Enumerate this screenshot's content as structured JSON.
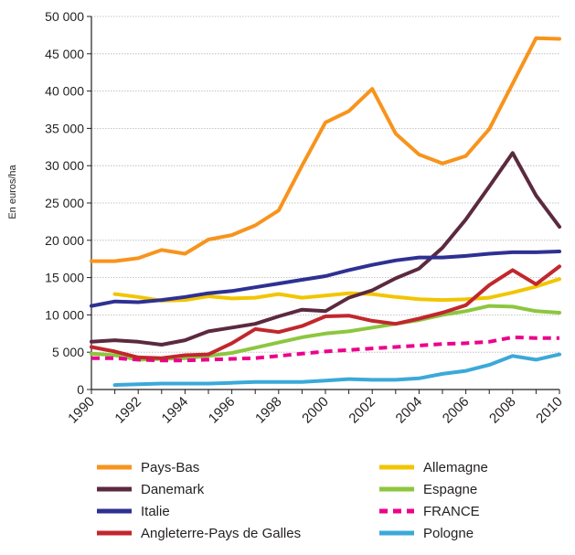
{
  "chart_data": {
    "type": "line",
    "title": "",
    "xlabel": "",
    "ylabel": "En euros/ha",
    "xlim": [
      1990,
      2010
    ],
    "ylim": [
      0,
      50000
    ],
    "grid": true,
    "legend_position": "bottom",
    "x_ticks": [
      {
        "value": 1990,
        "label": "1990"
      },
      {
        "value": 1992,
        "label": "1992"
      },
      {
        "value": 1994,
        "label": "1994"
      },
      {
        "value": 1996,
        "label": "1996"
      },
      {
        "value": 1998,
        "label": "1998"
      },
      {
        "value": 2000,
        "label": "2000"
      },
      {
        "value": 2002,
        "label": "2002"
      },
      {
        "value": 2004,
        "label": "2004"
      },
      {
        "value": 2006,
        "label": "2006"
      },
      {
        "value": 2008,
        "label": "2008"
      },
      {
        "value": 2010,
        "label": "2010"
      }
    ],
    "y_ticks": [
      {
        "value": 0,
        "label": "0"
      },
      {
        "value": 5000,
        "label": "5 000"
      },
      {
        "value": 10000,
        "label": "10 000"
      },
      {
        "value": 15000,
        "label": "15 000"
      },
      {
        "value": 20000,
        "label": "20 000"
      },
      {
        "value": 25000,
        "label": "25 000"
      },
      {
        "value": 30000,
        "label": "30 000"
      },
      {
        "value": 35000,
        "label": "35 000"
      },
      {
        "value": 40000,
        "label": "40 000"
      },
      {
        "value": 45000,
        "label": "45 000"
      },
      {
        "value": 50000,
        "label": "50 000"
      }
    ],
    "series": [
      {
        "name": "Pays-Bas",
        "color": "#f7941d",
        "dashed": false,
        "x": [
          1990,
          1991,
          1992,
          1993,
          1994,
          1995,
          1996,
          1997,
          1998,
          1999,
          2000,
          2001,
          2002,
          2003,
          2004,
          2005,
          2006,
          2007,
          2008,
          2009,
          2010
        ],
        "y": [
          17200,
          17200,
          17600,
          18700,
          18200,
          20100,
          20700,
          22000,
          24000,
          30000,
          35800,
          37300,
          40300,
          34300,
          31500,
          30300,
          31300,
          34900,
          41000,
          47100,
          47000
        ]
      },
      {
        "name": "Allemagne",
        "color": "#f2c500",
        "dashed": false,
        "x": [
          1991,
          1992,
          1993,
          1994,
          1995,
          1996,
          1997,
          1998,
          1999,
          2000,
          2001,
          2002,
          2003,
          2004,
          2005,
          2006,
          2007,
          2008,
          2009,
          2010
        ],
        "y": [
          12800,
          12400,
          11900,
          12000,
          12500,
          12200,
          12300,
          12800,
          12300,
          12600,
          12900,
          12800,
          12400,
          12100,
          12000,
          12100,
          12300,
          13000,
          13800,
          14800
        ]
      },
      {
        "name": "Danemark",
        "color": "#5b2a3f",
        "dashed": false,
        "x": [
          1990,
          1991,
          1992,
          1993,
          1994,
          1995,
          1996,
          1997,
          1998,
          1999,
          2000,
          2001,
          2002,
          2003,
          2004,
          2005,
          2006,
          2007,
          2008,
          2009,
          2010
        ],
        "y": [
          6400,
          6600,
          6400,
          6000,
          6600,
          7800,
          8300,
          8800,
          9800,
          10700,
          10500,
          12300,
          13300,
          14900,
          16200,
          19000,
          22800,
          27200,
          31700,
          26000,
          21800
        ]
      },
      {
        "name": "Espagne",
        "color": "#8dc63f",
        "dashed": false,
        "x": [
          1990,
          1991,
          1992,
          1993,
          1994,
          1995,
          1996,
          1997,
          1998,
          1999,
          2000,
          2001,
          2002,
          2003,
          2004,
          2005,
          2006,
          2007,
          2008,
          2009,
          2010
        ],
        "y": [
          4800,
          4600,
          4000,
          4100,
          4200,
          4500,
          4900,
          5600,
          6300,
          7000,
          7500,
          7800,
          8300,
          8800,
          9300,
          10000,
          10500,
          11200,
          11100,
          10500,
          10300
        ]
      },
      {
        "name": "Italie",
        "color": "#2e3192",
        "dashed": false,
        "x": [
          1990,
          1991,
          1992,
          1993,
          1994,
          1995,
          1996,
          1997,
          1998,
          1999,
          2000,
          2001,
          2002,
          2003,
          2004,
          2005,
          2006,
          2007,
          2008,
          2009,
          2010
        ],
        "y": [
          11200,
          11800,
          11700,
          12000,
          12400,
          12900,
          13200,
          13700,
          14200,
          14700,
          15200,
          16000,
          16700,
          17300,
          17700,
          17700,
          17900,
          18200,
          18400,
          18400,
          18500
        ]
      },
      {
        "name": "FRANCE",
        "color": "#ec008c",
        "dashed": true,
        "x": [
          1990,
          1991,
          1992,
          1993,
          1994,
          1995,
          1996,
          1997,
          1998,
          1999,
          2000,
          2001,
          2002,
          2003,
          2004,
          2005,
          2006,
          2007,
          2008,
          2009,
          2010
        ],
        "y": [
          4200,
          4200,
          4000,
          3900,
          3900,
          4000,
          4100,
          4200,
          4500,
          4800,
          5100,
          5300,
          5500,
          5700,
          5900,
          6100,
          6200,
          6400,
          7000,
          6900,
          6900
        ]
      },
      {
        "name": "Angleterre-Pays de Galles",
        "color": "#c1272d",
        "dashed": false,
        "x": [
          1990,
          1991,
          1992,
          1993,
          1994,
          1995,
          1996,
          1997,
          1998,
          1999,
          2000,
          2001,
          2002,
          2003,
          2004,
          2005,
          2006,
          2007,
          2008,
          2009,
          2010
        ],
        "y": [
          5700,
          5100,
          4300,
          4200,
          4600,
          4700,
          6200,
          8100,
          7700,
          8500,
          9800,
          9900,
          9200,
          8800,
          9500,
          10300,
          11300,
          14000,
          16000,
          14100,
          16500
        ]
      },
      {
        "name": "Pologne",
        "color": "#3ba9d9",
        "dashed": false,
        "x": [
          1991,
          1992,
          1993,
          1994,
          1995,
          1996,
          1997,
          1998,
          1999,
          2000,
          2001,
          2002,
          2003,
          2004,
          2005,
          2006,
          2007,
          2008,
          2009,
          2010
        ],
        "y": [
          600,
          700,
          800,
          800,
          800,
          900,
          1000,
          1000,
          1000,
          1200,
          1400,
          1300,
          1300,
          1500,
          2100,
          2500,
          3300,
          4500,
          4000,
          4700
        ]
      }
    ]
  }
}
